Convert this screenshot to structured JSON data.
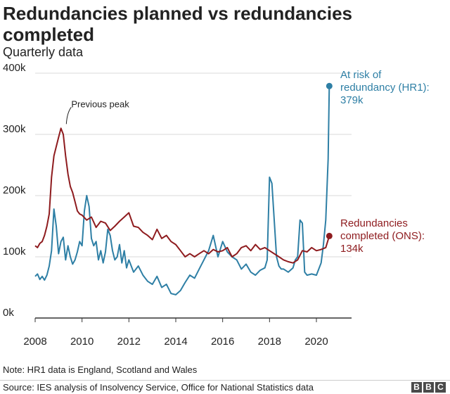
{
  "title": "Redundancies planned vs redundancies completed",
  "subtitle": "Quarterly data",
  "note": "Note: HR1 data is England, Scotland and Wales",
  "source": "Source: IES analysis of Insolvency Service, Office for National Statistics data",
  "logo": [
    "B",
    "B",
    "C"
  ],
  "colors": {
    "hr1": "#2e7fa5",
    "ons": "#8e1b1e",
    "grid": "#d9d9d9",
    "axis": "#333333"
  },
  "chart_data": {
    "type": "line",
    "title": "Redundancies planned vs redundancies completed",
    "subtitle": "Quarterly data",
    "xlabel": "",
    "ylabel": "",
    "xlim": [
      2008,
      2021.5
    ],
    "ylim": [
      0,
      400
    ],
    "x_ticks": [
      "2008",
      "2010",
      "2012",
      "2014",
      "2016",
      "2018",
      "2020"
    ],
    "y_ticks": [
      "0k",
      "100k",
      "200k",
      "300k",
      "400k"
    ],
    "grid": true,
    "series": [
      {
        "key": "hr1",
        "label_lines": [
          "At risk of",
          "redundancy (HR1):",
          "379k"
        ],
        "x": [
          2008.0,
          2008.1,
          2008.2,
          2008.3,
          2008.4,
          2008.5,
          2008.6,
          2008.7,
          2008.8,
          2008.9,
          2009.0,
          2009.1,
          2009.2,
          2009.3,
          2009.4,
          2009.5,
          2009.6,
          2009.7,
          2009.8,
          2009.9,
          2010.0,
          2010.1,
          2010.2,
          2010.3,
          2010.4,
          2010.5,
          2010.6,
          2010.7,
          2010.8,
          2010.9,
          2011.0,
          2011.1,
          2011.2,
          2011.3,
          2011.4,
          2011.5,
          2011.6,
          2011.7,
          2011.8,
          2011.9,
          2012.0,
          2012.2,
          2012.4,
          2012.6,
          2012.8,
          2013.0,
          2013.2,
          2013.4,
          2013.6,
          2013.8,
          2014.0,
          2014.2,
          2014.4,
          2014.6,
          2014.8,
          2015.0,
          2015.2,
          2015.4,
          2015.6,
          2015.8,
          2016.0,
          2016.2,
          2016.4,
          2016.6,
          2016.8,
          2017.0,
          2017.2,
          2017.4,
          2017.6,
          2017.8,
          2017.9,
          2018.0,
          2018.1,
          2018.2,
          2018.3,
          2018.4,
          2018.5,
          2018.6,
          2018.8,
          2019.0,
          2019.1,
          2019.2,
          2019.3,
          2019.4,
          2019.5,
          2019.6,
          2019.8,
          2020.0,
          2020.2,
          2020.3,
          2020.4,
          2020.5,
          2020.55
        ],
        "values": [
          68,
          72,
          63,
          68,
          62,
          70,
          85,
          110,
          178,
          150,
          105,
          125,
          132,
          95,
          118,
          100,
          88,
          95,
          108,
          125,
          118,
          175,
          200,
          182,
          130,
          118,
          125,
          95,
          110,
          90,
          108,
          145,
          135,
          110,
          95,
          100,
          120,
          90,
          110,
          82,
          95,
          75,
          85,
          70,
          60,
          55,
          68,
          50,
          55,
          40,
          38,
          45,
          58,
          70,
          65,
          80,
          95,
          110,
          135,
          100,
          125,
          108,
          100,
          95,
          80,
          88,
          75,
          70,
          78,
          82,
          95,
          230,
          220,
          160,
          100,
          85,
          80,
          80,
          75,
          82,
          95,
          100,
          160,
          155,
          75,
          70,
          72,
          70,
          90,
          120,
          160,
          260,
          379
        ]
      },
      {
        "key": "ons",
        "label_lines": [
          "Redundancies",
          "completed (ONS):",
          "134k"
        ],
        "x": [
          2008.0,
          2008.1,
          2008.2,
          2008.3,
          2008.4,
          2008.5,
          2008.6,
          2008.7,
          2008.8,
          2008.9,
          2009.0,
          2009.1,
          2009.2,
          2009.3,
          2009.4,
          2009.5,
          2009.6,
          2009.7,
          2009.8,
          2009.9,
          2010.0,
          2010.2,
          2010.4,
          2010.6,
          2010.8,
          2011.0,
          2011.2,
          2011.4,
          2011.6,
          2011.8,
          2012.0,
          2012.2,
          2012.4,
          2012.6,
          2012.8,
          2013.0,
          2013.2,
          2013.4,
          2013.6,
          2013.8,
          2014.0,
          2014.2,
          2014.4,
          2014.6,
          2014.8,
          2015.0,
          2015.2,
          2015.4,
          2015.6,
          2015.8,
          2016.0,
          2016.2,
          2016.4,
          2016.6,
          2016.8,
          2017.0,
          2017.2,
          2017.4,
          2017.6,
          2017.8,
          2018.0,
          2018.2,
          2018.4,
          2018.6,
          2018.8,
          2019.0,
          2019.2,
          2019.4,
          2019.6,
          2019.8,
          2020.0,
          2020.2,
          2020.4,
          2020.55
        ],
        "values": [
          118,
          115,
          122,
          125,
          135,
          150,
          170,
          230,
          265,
          280,
          295,
          310,
          300,
          265,
          235,
          215,
          205,
          190,
          175,
          170,
          168,
          160,
          165,
          148,
          158,
          155,
          143,
          150,
          158,
          165,
          172,
          150,
          148,
          140,
          135,
          128,
          145,
          130,
          135,
          125,
          120,
          110,
          100,
          105,
          100,
          105,
          110,
          105,
          112,
          108,
          110,
          115,
          100,
          105,
          115,
          118,
          110,
          120,
          112,
          115,
          110,
          105,
          100,
          95,
          92,
          90,
          95,
          110,
          108,
          115,
          110,
          112,
          115,
          134
        ]
      }
    ],
    "annotations": [
      {
        "text": "Previous peak",
        "x": 2009.3,
        "y": 310
      }
    ]
  }
}
